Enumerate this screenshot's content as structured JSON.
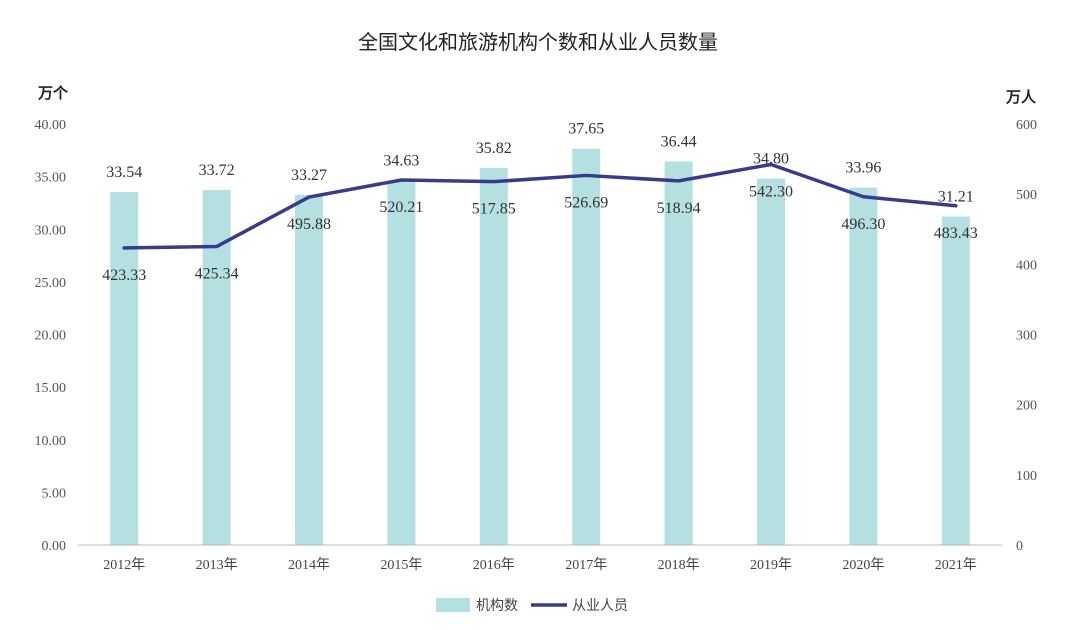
{
  "chart_data": {
    "type": "bar",
    "title": "全国文化和旅游机构个数和从业人员数量",
    "left_unit": "万个",
    "right_unit": "万人",
    "categories": [
      "2012年",
      "2013年",
      "2014年",
      "2015年",
      "2016年",
      "2017年",
      "2018年",
      "2019年",
      "2020年",
      "2021年"
    ],
    "series": [
      {
        "name": "机构数",
        "type": "bar",
        "axis": "left",
        "color": "#b5e0e2",
        "values": [
          33.54,
          33.72,
          33.27,
          34.63,
          35.82,
          37.65,
          36.44,
          34.8,
          33.96,
          31.21
        ],
        "labels": [
          "33.54",
          "33.72",
          "33.27",
          "34.63",
          "35.82",
          "37.65",
          "36.44",
          "34.80",
          "33.96",
          "31.21"
        ]
      },
      {
        "name": "从业人员",
        "type": "line",
        "axis": "right",
        "color": "#3a3a8c",
        "values": [
          423.33,
          425.34,
          495.88,
          520.21,
          517.85,
          526.69,
          518.94,
          542.3,
          496.3,
          483.43
        ],
        "labels": [
          "423.33",
          "425.34",
          "495.88",
          "520.21",
          "517.85",
          "526.69",
          "518.94",
          "542.30",
          "496.30",
          "483.43"
        ]
      }
    ],
    "y_left": {
      "range": [
        0,
        40
      ],
      "ticks": [
        0,
        5,
        10,
        15,
        20,
        25,
        30,
        35,
        40
      ],
      "tick_labels": [
        "0.00",
        "5.00",
        "10.00",
        "15.00",
        "20.00",
        "25.00",
        "30.00",
        "35.00",
        "40.00"
      ]
    },
    "y_right": {
      "range": [
        0,
        600
      ],
      "ticks": [
        0,
        100,
        200,
        300,
        400,
        500,
        600
      ],
      "tick_labels": [
        "0",
        "100",
        "200",
        "300",
        "400",
        "500",
        "600"
      ]
    },
    "grid": false,
    "legend_position": "bottom-center"
  }
}
